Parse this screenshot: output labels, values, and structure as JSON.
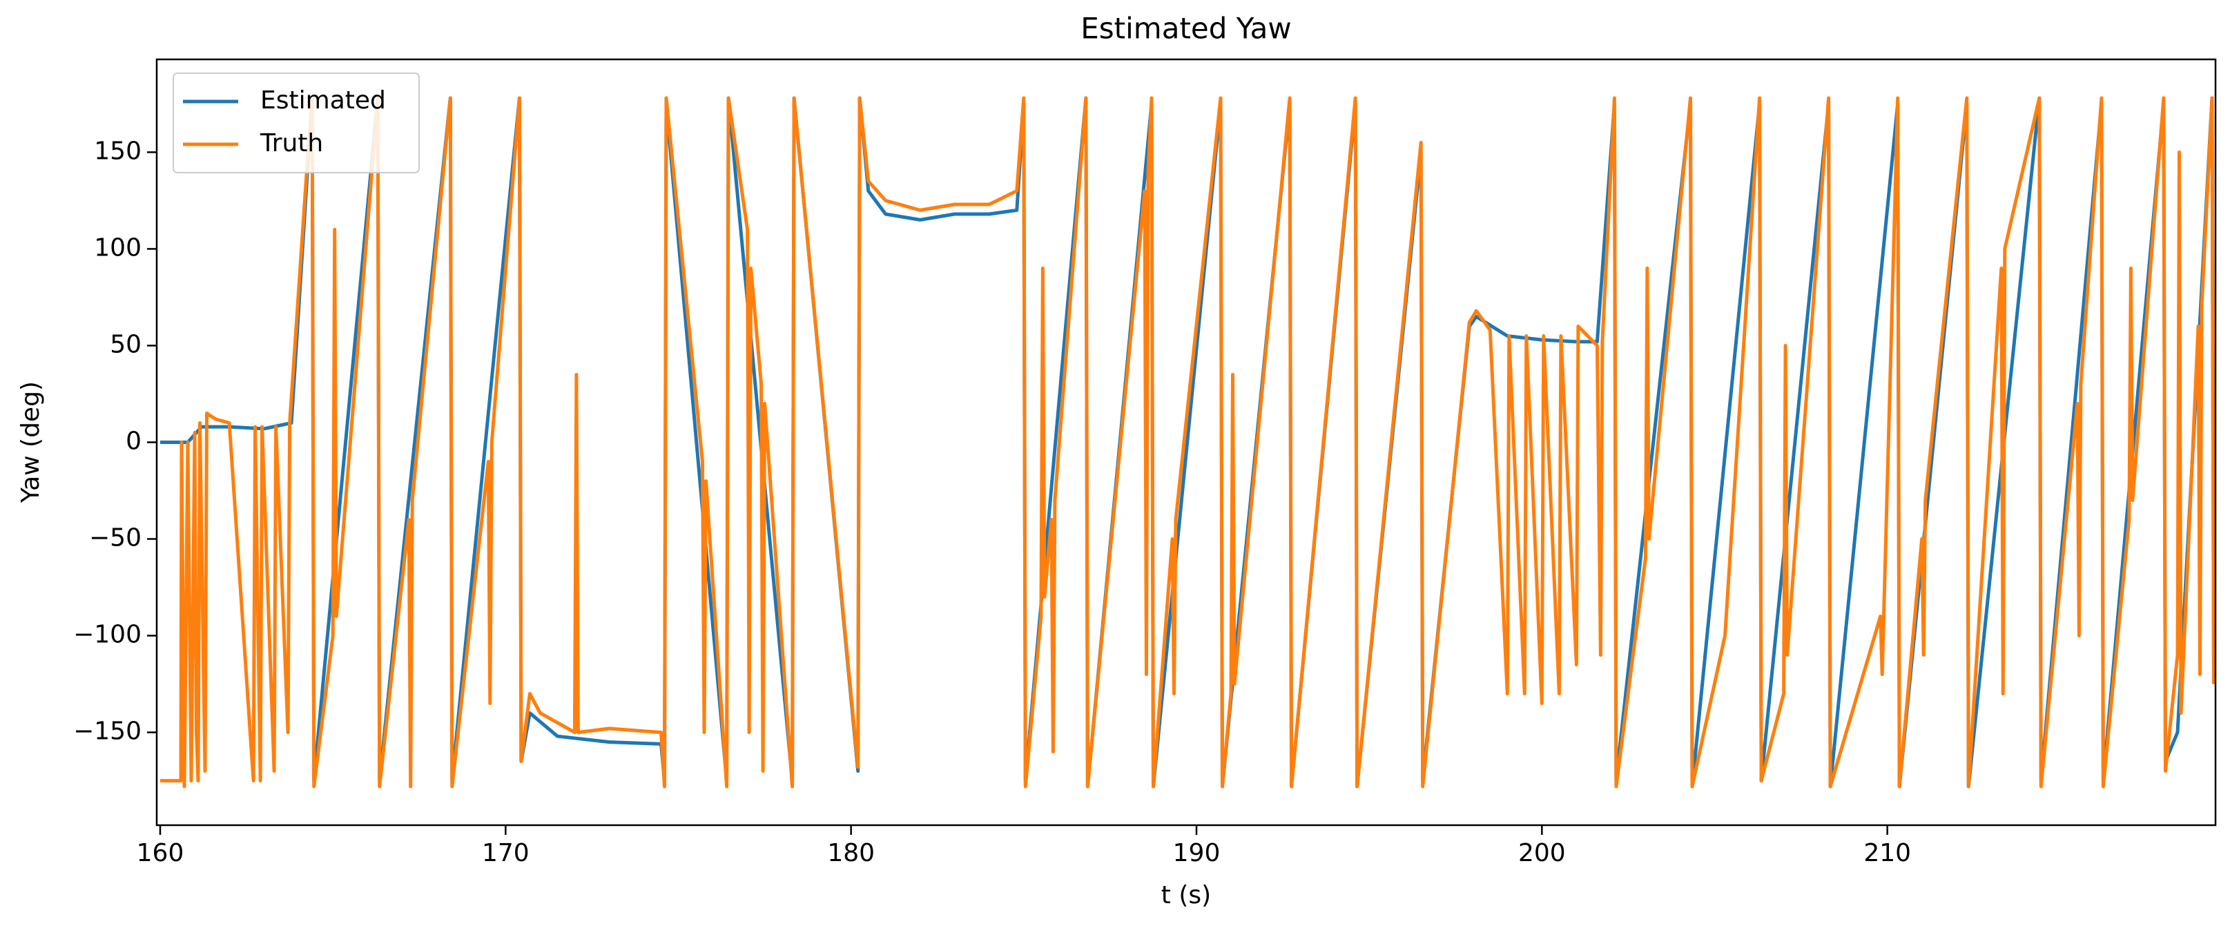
{
  "chart_data": {
    "type": "line",
    "title": "Estimated Yaw",
    "xlabel": "t (s)",
    "ylabel": "Yaw (deg)",
    "xlim": [
      159.9,
      219.5
    ],
    "ylim": [
      -198,
      198
    ],
    "xticks": [
      160,
      170,
      180,
      190,
      200,
      210
    ],
    "yticks": [
      {
        "value": -150,
        "label": "−150"
      },
      {
        "value": -100,
        "label": "−100"
      },
      {
        "value": -50,
        "label": "−50"
      },
      0,
      50,
      100,
      150
    ],
    "grid": false,
    "legend": "upper left",
    "series": [
      {
        "name": "Estimated",
        "color": "#1f77b4",
        "x": [
          160.0,
          160.8,
          161.2,
          162.0,
          163.0,
          163.8,
          164.3,
          164.4,
          164.45,
          166.3,
          166.35,
          168.4,
          168.45,
          170.4,
          170.45,
          170.7,
          171.5,
          173,
          174.5,
          174.6,
          174.65,
          176.4,
          176.45,
          178.3,
          178.35,
          180.2,
          180.25,
          180.5,
          181,
          182,
          183,
          184,
          184.8,
          185.0,
          185.05,
          186.8,
          186.85,
          188.7,
          188.75,
          190.7,
          190.75,
          192.7,
          192.75,
          194.6,
          194.65,
          196.5,
          196.55,
          197.9,
          198.1,
          199,
          200,
          201,
          201.6,
          202.1,
          202.15,
          204.3,
          204.35,
          206.3,
          206.35,
          208.3,
          208.35,
          210.3,
          210.35,
          212.3,
          212.35,
          214.4,
          214.45,
          216.2,
          216.25,
          218.0,
          218.05,
          218.4,
          219.4,
          219.45
        ],
        "values": [
          0,
          0,
          8,
          8,
          7,
          10,
          150,
          178,
          -175,
          178,
          -175,
          178,
          -175,
          178,
          -165,
          -140,
          -152,
          -155,
          -156,
          -175,
          175,
          -175,
          178,
          -175,
          178,
          -170,
          178,
          130,
          118,
          115,
          118,
          118,
          120,
          175,
          -175,
          178,
          -178,
          175,
          -178,
          175,
          -178,
          175,
          -178,
          175,
          -178,
          150,
          -175,
          60,
          65,
          55,
          53,
          52,
          52,
          175,
          -175,
          175,
          -178,
          175,
          -175,
          175,
          -178,
          175,
          -178,
          175,
          -178,
          178,
          -175,
          175,
          -175,
          175,
          -165,
          -150,
          178,
          -125
        ]
      },
      {
        "name": "Truth",
        "color": "#ff7f0e",
        "x": [
          160.0,
          160.6,
          160.62,
          160.7,
          160.8,
          160.9,
          161.0,
          161.05,
          161.1,
          161.15,
          161.3,
          161.35,
          161.6,
          162.0,
          162.7,
          162.75,
          162.9,
          162.95,
          163.3,
          163.35,
          163.7,
          163.75,
          164.3,
          164.4,
          164.45,
          165.0,
          165.05,
          165.1,
          166.3,
          166.35,
          167.2,
          167.25,
          167.3,
          168.4,
          168.45,
          169.5,
          169.55,
          169.6,
          170.4,
          170.45,
          170.7,
          171,
          171.5,
          172.0,
          172.05,
          172.1,
          173,
          174.5,
          174.6,
          174.65,
          175.7,
          175.75,
          175.8,
          176.4,
          176.45,
          177.0,
          177.05,
          177.1,
          177.4,
          177.45,
          177.5,
          178.3,
          178.35,
          180.2,
          180.25,
          180.5,
          181,
          182,
          183,
          184,
          184.8,
          185.0,
          185.05,
          185.5,
          185.55,
          185.6,
          185.8,
          185.85,
          185.9,
          186.8,
          186.85,
          188.5,
          188.55,
          188.6,
          188.7,
          188.75,
          189.3,
          189.35,
          189.4,
          190.7,
          190.75,
          191.0,
          191.05,
          191.1,
          192.7,
          192.75,
          194.6,
          194.65,
          196.5,
          196.55,
          197.9,
          198.1,
          198.5,
          199.0,
          199.05,
          199.5,
          199.55,
          200.0,
          200.05,
          200.5,
          200.55,
          201.0,
          201.05,
          201.6,
          201.7,
          201.75,
          202.1,
          202.15,
          203.0,
          203.05,
          203.1,
          204.3,
          204.35,
          205.3,
          206.3,
          206.35,
          207.0,
          207.05,
          207.1,
          208.3,
          208.35,
          209.8,
          209.85,
          210.3,
          210.35,
          211.0,
          211.05,
          211.1,
          212.3,
          212.35,
          213.3,
          213.35,
          213.4,
          214.4,
          214.45,
          215.5,
          215.55,
          215.6,
          216.2,
          216.25,
          217.0,
          217.05,
          217.1,
          218.0,
          218.05,
          218.4,
          218.45,
          218.5,
          219.0,
          219.05,
          219.1,
          219.4,
          219.45
        ],
        "values": [
          -175,
          -175,
          0,
          -178,
          0,
          -175,
          5,
          -150,
          -175,
          10,
          -170,
          15,
          12,
          10,
          -175,
          8,
          -175,
          8,
          -170,
          8,
          -150,
          10,
          155,
          178,
          -178,
          -100,
          110,
          -90,
          178,
          -178,
          -40,
          -178,
          -30,
          178,
          -178,
          -10,
          -135,
          0,
          178,
          -165,
          -130,
          -140,
          -145,
          -150,
          35,
          -150,
          -148,
          -150,
          -178,
          178,
          -10,
          -150,
          -20,
          -178,
          178,
          110,
          -150,
          90,
          30,
          -170,
          20,
          -178,
          178,
          -168,
          178,
          135,
          125,
          120,
          123,
          123,
          130,
          178,
          -178,
          -90,
          90,
          -80,
          -40,
          -160,
          -30,
          178,
          -178,
          130,
          -120,
          140,
          178,
          -178,
          -50,
          -130,
          -40,
          178,
          -178,
          -130,
          35,
          -125,
          178,
          -178,
          178,
          -178,
          155,
          -178,
          62,
          68,
          58,
          -130,
          55,
          -130,
          55,
          -135,
          55,
          -130,
          55,
          -115,
          60,
          50,
          -110,
          52,
          178,
          -178,
          -60,
          90,
          -50,
          178,
          -178,
          -100,
          178,
          -175,
          -130,
          50,
          -110,
          178,
          -178,
          -90,
          -120,
          178,
          -178,
          -50,
          -110,
          -30,
          178,
          -178,
          90,
          -130,
          100,
          178,
          -178,
          20,
          -100,
          30,
          178,
          -178,
          -40,
          90,
          -30,
          178,
          -170,
          -110,
          150,
          -140,
          60,
          -120,
          70,
          178,
          -125
        ]
      }
    ]
  }
}
